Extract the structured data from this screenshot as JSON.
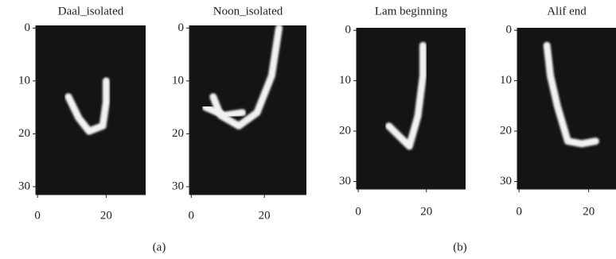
{
  "chart_data": [
    {
      "type": "image",
      "title": "Daal_isolated",
      "xlim": [
        -0.5,
        31.5
      ],
      "ylim": [
        31.5,
        -0.5
      ],
      "xticks": [
        0,
        20
      ],
      "yticks": [
        0,
        10,
        20,
        30
      ]
    },
    {
      "type": "image",
      "title": "Noon_isolated",
      "xlim": [
        -0.5,
        31.5
      ],
      "ylim": [
        31.5,
        -0.5
      ],
      "xticks": [
        0,
        20
      ],
      "yticks": [
        0,
        10,
        20,
        30
      ]
    },
    {
      "type": "image",
      "title": "Lam beginning",
      "xlim": [
        -0.5,
        31.5
      ],
      "ylim": [
        31.5,
        -0.5
      ],
      "xticks": [
        0,
        20
      ],
      "yticks": [
        0,
        10,
        20,
        30
      ]
    },
    {
      "type": "image",
      "title": "Alif end",
      "xlim": [
        -0.5,
        31.5
      ],
      "ylim": [
        31.5,
        -0.5
      ],
      "xticks": [
        0,
        20
      ],
      "yticks": [
        0,
        10,
        20,
        30
      ]
    }
  ],
  "captions": [
    "(a)",
    "(b)"
  ]
}
